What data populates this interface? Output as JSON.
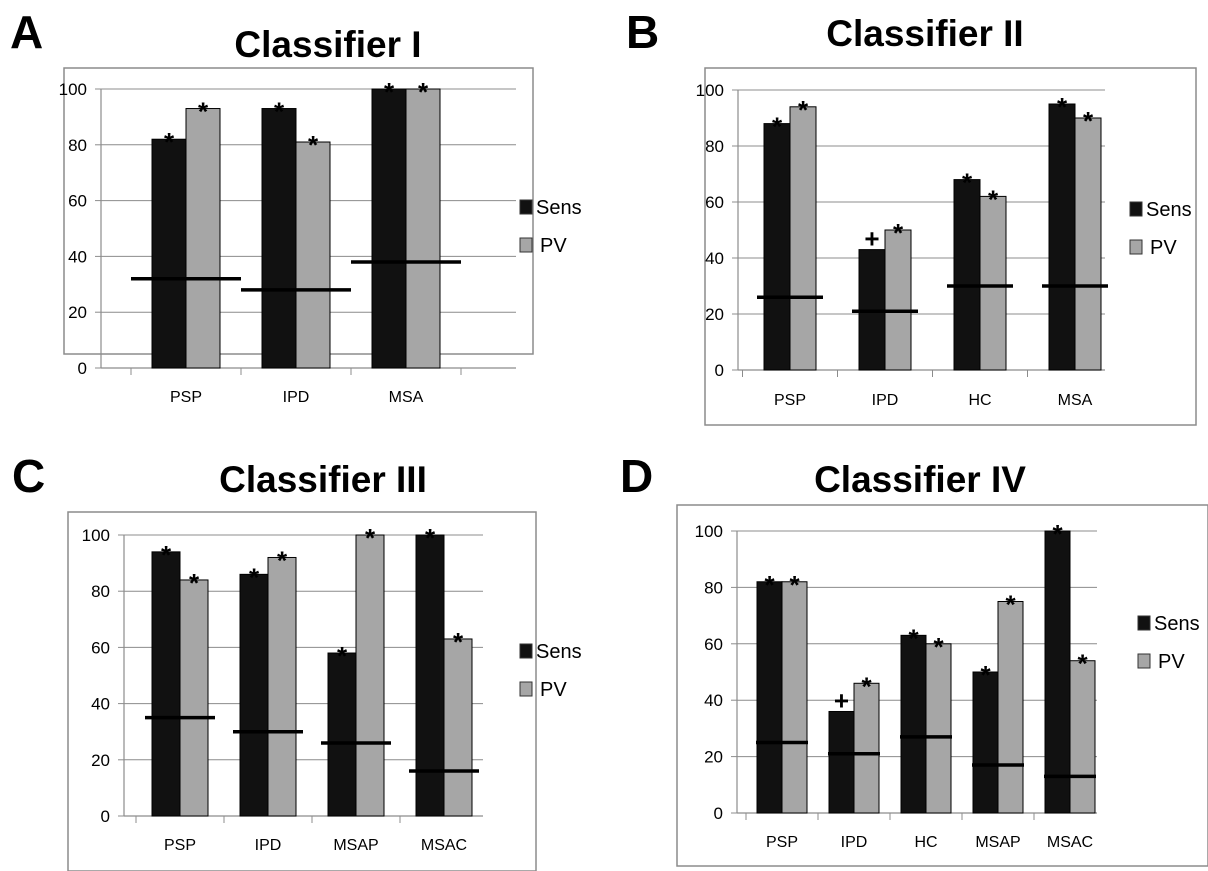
{
  "chart_data": [
    {
      "type": "bar",
      "panel_label": "A",
      "title": "Classifier I",
      "categories": [
        "PSP",
        "IPD",
        "MSA"
      ],
      "series": [
        {
          "name": "Sens",
          "values": [
            82,
            93,
            100
          ],
          "color": "#111111"
        },
        {
          "name": "PV",
          "values": [
            93,
            81,
            100
          ],
          "color": "#a6a6a6"
        }
      ],
      "baseline_values": [
        32,
        28,
        38
      ],
      "markers": [
        [
          "*",
          "*"
        ],
        [
          "*",
          "*"
        ],
        [
          "*",
          "*"
        ]
      ],
      "ylim": [
        0,
        100
      ],
      "yticks": [
        "0",
        "20",
        "40",
        "60",
        "80",
        "100"
      ],
      "grid": true,
      "legend": "right"
    },
    {
      "type": "bar",
      "panel_label": "B",
      "title": "Classifier II",
      "categories": [
        "PSP",
        "IPD",
        "HC",
        "MSA"
      ],
      "series": [
        {
          "name": "Sens",
          "values": [
            88,
            43,
            68,
            95
          ],
          "color": "#111111"
        },
        {
          "name": "PV",
          "values": [
            94,
            50,
            62,
            90
          ],
          "color": "#a6a6a6"
        }
      ],
      "baseline_values": [
        26,
        21,
        30,
        30
      ],
      "markers": [
        [
          "*",
          "*"
        ],
        [
          "+",
          "*"
        ],
        [
          "*",
          "*"
        ],
        [
          "*",
          "*"
        ]
      ],
      "ylim": [
        0,
        100
      ],
      "yticks": [
        "0",
        "20",
        "40",
        "60",
        "80",
        "100"
      ],
      "grid": true,
      "legend": "right"
    },
    {
      "type": "bar",
      "panel_label": "C",
      "title": "Classifier III",
      "categories": [
        "PSP",
        "IPD",
        "MSAP",
        "MSAC"
      ],
      "series": [
        {
          "name": "Sens",
          "values": [
            94,
            86,
            58,
            100
          ],
          "color": "#111111"
        },
        {
          "name": "PV",
          "values": [
            84,
            92,
            100,
            63
          ],
          "color": "#a6a6a6"
        }
      ],
      "baseline_values": [
        35,
        30,
        26,
        16
      ],
      "markers": [
        [
          "*",
          "*"
        ],
        [
          "*",
          "*"
        ],
        [
          "*",
          "*"
        ],
        [
          "*",
          "*"
        ]
      ],
      "ylim": [
        0,
        100
      ],
      "yticks": [
        "0",
        "20",
        "40",
        "60",
        "80",
        "100"
      ],
      "grid": true,
      "legend": "right"
    },
    {
      "type": "bar",
      "panel_label": "D",
      "title": "Classifier IV",
      "categories": [
        "PSP",
        "IPD",
        "HC",
        "MSAP",
        "MSAC"
      ],
      "series": [
        {
          "name": "Sens",
          "values": [
            82,
            36,
            63,
            50,
            100
          ],
          "color": "#111111"
        },
        {
          "name": "PV",
          "values": [
            82,
            46,
            60,
            75,
            54
          ],
          "color": "#a6a6a6"
        }
      ],
      "baseline_values": [
        25,
        21,
        27,
        17,
        13
      ],
      "markers": [
        [
          "*",
          "*"
        ],
        [
          "+",
          "*"
        ],
        [
          "*",
          "*"
        ],
        [
          "*",
          "*"
        ],
        [
          "*",
          "*"
        ]
      ],
      "ylim": [
        0,
        100
      ],
      "yticks": [
        "0",
        "20",
        "40",
        "60",
        "80",
        "100"
      ],
      "grid": true,
      "legend": "right"
    }
  ]
}
